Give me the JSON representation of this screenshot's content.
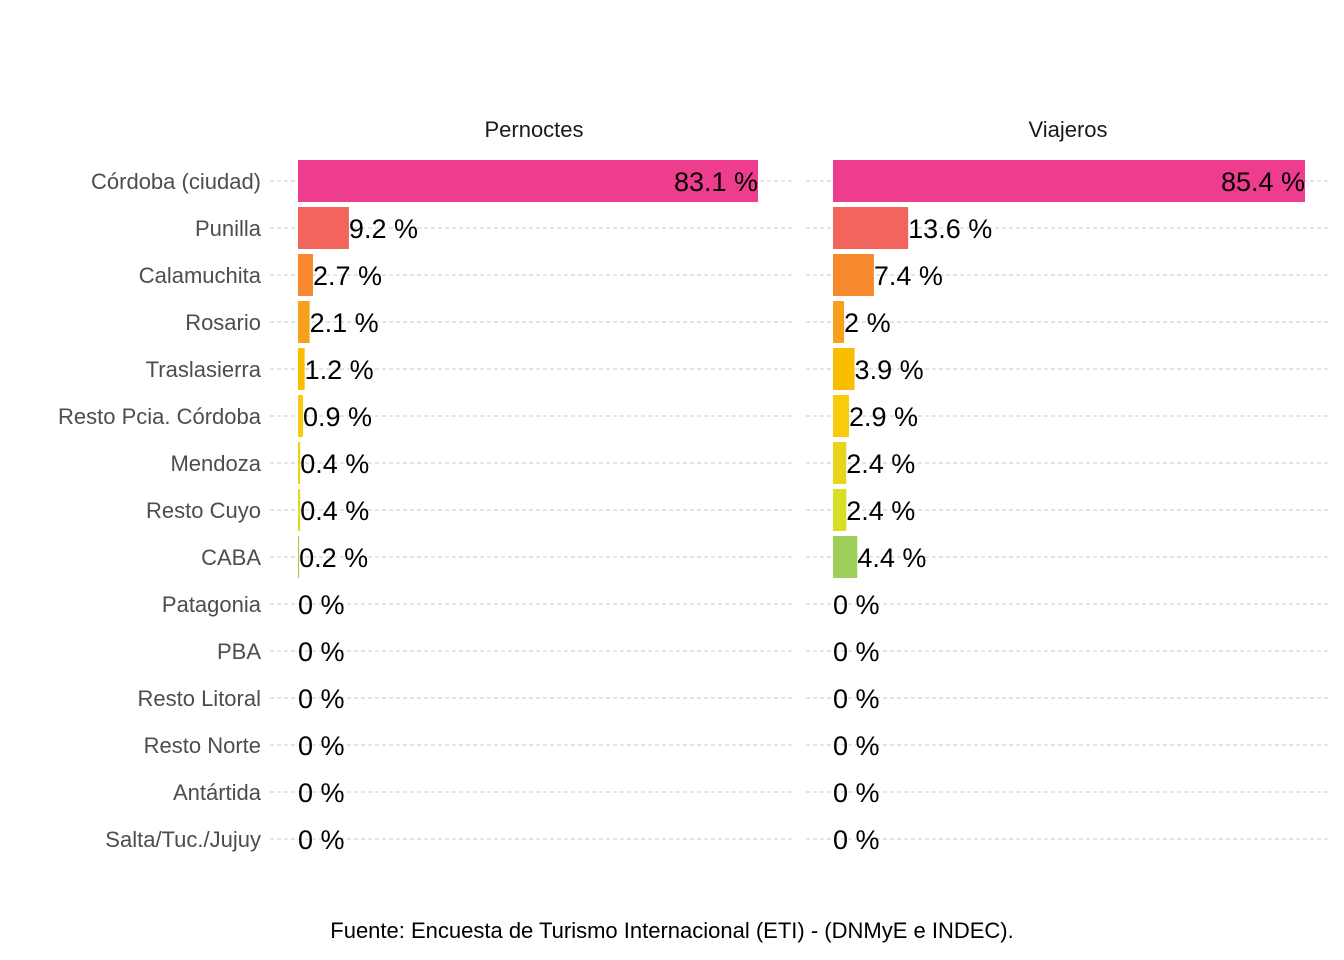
{
  "chart_data": {
    "type": "bar",
    "orientation": "horizontal",
    "categories": [
      "Córdoba (ciudad)",
      "Punilla",
      "Calamuchita",
      "Rosario",
      "Traslasierra",
      "Resto Pcia. Córdoba",
      "Mendoza",
      "Resto Cuyo",
      "CABA",
      "Patagonia",
      "PBA",
      "Resto Litoral",
      "Resto Norte",
      "Antártida",
      "Salta/Tuc./Jujuy"
    ],
    "panels": [
      {
        "title": "Pernoctes",
        "values": [
          83.1,
          9.2,
          2.7,
          2.1,
          1.2,
          0.9,
          0.4,
          0.4,
          0.2,
          0,
          0,
          0,
          0,
          0,
          0
        ],
        "labels": [
          "83.1 %",
          "9.2 %",
          "2.7 %",
          "2.1 %",
          "1.2 %",
          "0.9 %",
          "0.4 %",
          "0.4 %",
          "0.2 %",
          "0 %",
          "0 %",
          "0 %",
          "0 %",
          "0 %",
          "0 %"
        ],
        "xlim": [
          0,
          83.1
        ]
      },
      {
        "title": "Viajeros",
        "values": [
          85.4,
          13.6,
          7.4,
          2,
          3.9,
          2.9,
          2.4,
          2.4,
          4.4,
          0,
          0,
          0,
          0,
          0,
          0
        ],
        "labels": [
          "85.4 %",
          "13.6 %",
          "7.4 %",
          "2 %",
          "3.9 %",
          "2.9 %",
          "2.4 %",
          "2.4 %",
          "4.4 %",
          "0 %",
          "0 %",
          "0 %",
          "0 %",
          "0 %",
          "0 %"
        ],
        "xlim": [
          0,
          85.4
        ]
      }
    ],
    "colors": [
      "#EE3D8F",
      "#F1655C",
      "#F7882D",
      "#F7A01E",
      "#FABD00",
      "#F9CB0B",
      "#E7D41B",
      "#D8DE24",
      "#9ECF5A",
      "#9ECF5A",
      "#9ECF5A",
      "#9ECF5A",
      "#9ECF5A",
      "#9ECF5A",
      "#9ECF5A"
    ],
    "grid": "horizontal-dashed",
    "legend": "none",
    "caption": "Fuente: Encuesta de Turismo Internacional (ETI) - (DNMyE e INDEC)."
  }
}
